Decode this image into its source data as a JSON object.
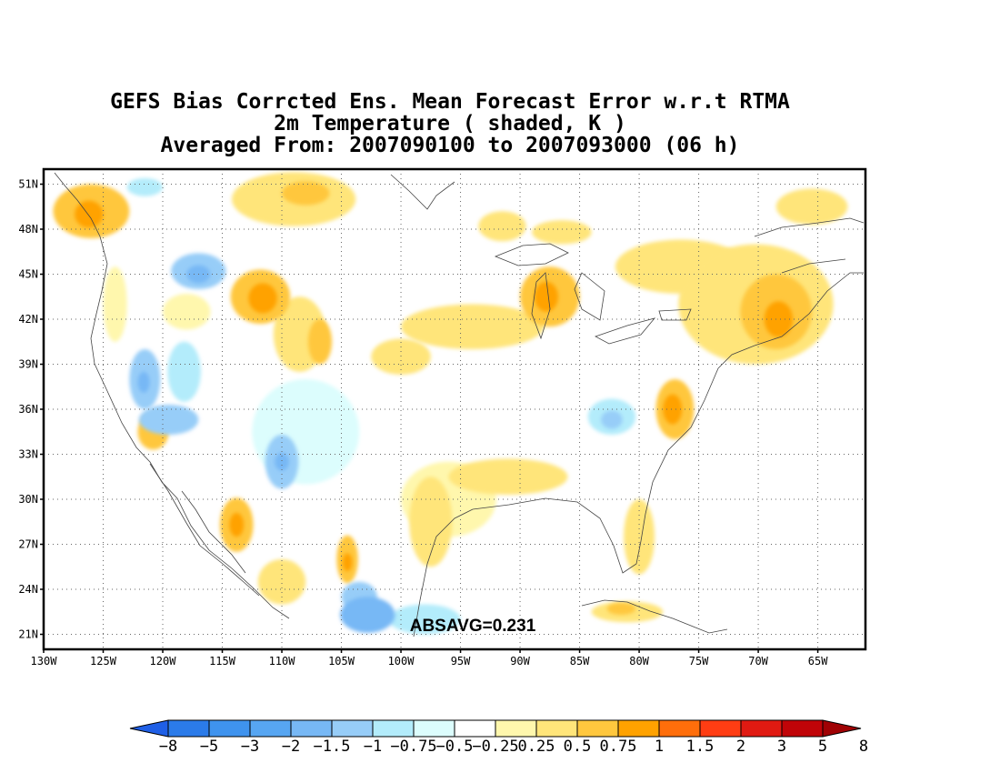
{
  "title": {
    "line1": "GEFS Bias Corrcted Ens. Mean Forecast Error w.r.t RTMA",
    "line2": "2m Temperature ( shaded, K )",
    "line3": "Averaged From: 2007090100 to 2007093000 (06 h)"
  },
  "map": {
    "lon_range": [
      -130,
      -61
    ],
    "lat_range": [
      20,
      52
    ],
    "grid": "dotted",
    "lat_ticks": [
      {
        "value": 51,
        "label": "51N"
      },
      {
        "value": 48,
        "label": "48N"
      },
      {
        "value": 45,
        "label": "45N"
      },
      {
        "value": 42,
        "label": "42N"
      },
      {
        "value": 39,
        "label": "39N"
      },
      {
        "value": 36,
        "label": "36N"
      },
      {
        "value": 33,
        "label": "33N"
      },
      {
        "value": 30,
        "label": "30N"
      },
      {
        "value": 27,
        "label": "27N"
      },
      {
        "value": 24,
        "label": "24N"
      },
      {
        "value": 21,
        "label": "21N"
      }
    ],
    "lon_ticks": [
      {
        "value": -130,
        "label": "130W"
      },
      {
        "value": -125,
        "label": "125W"
      },
      {
        "value": -120,
        "label": "120W"
      },
      {
        "value": -115,
        "label": "115W"
      },
      {
        "value": -110,
        "label": "110W"
      },
      {
        "value": -105,
        "label": "105W"
      },
      {
        "value": -100,
        "label": "100W"
      },
      {
        "value": -95,
        "label": "95W"
      },
      {
        "value": -90,
        "label": "90W"
      },
      {
        "value": -85,
        "label": "85W"
      },
      {
        "value": -80,
        "label": "80W"
      },
      {
        "value": -75,
        "label": "75W"
      },
      {
        "value": -70,
        "label": "70W"
      },
      {
        "value": -65,
        "label": "65W"
      }
    ],
    "absavg_label": "ABSAVG=0.231"
  },
  "colorbar": {
    "colors": [
      "#1f5fe6",
      "#2b7be9",
      "#3f93ee",
      "#57a6f2",
      "#77b8f5",
      "#97cdf8",
      "#b3ecfb",
      "#dcfdfd",
      "#ffffff",
      "#fff7ad",
      "#ffe57a",
      "#ffc73e",
      "#ffa200",
      "#ff6e0b",
      "#ff3d13",
      "#e01a12",
      "#c00408",
      "#a00204"
    ],
    "labels": [
      "-8",
      "-5",
      "-3",
      "-2",
      "-1.5",
      "-1",
      "-0.75",
      "-0.5",
      "-0.25",
      "0.25",
      "0.5",
      "0.75",
      "1",
      "1.5",
      "2",
      "3",
      "5",
      "8"
    ]
  },
  "blobs": [
    {
      "lon": -126,
      "lat": 49.2,
      "rx": 3.2,
      "ry": 1.8,
      "v": 0.75
    },
    {
      "lon": -126.2,
      "lat": 49.0,
      "rx": 1.2,
      "ry": 0.9,
      "v": 1
    },
    {
      "lon": -121.5,
      "lat": 50.8,
      "rx": 1.5,
      "ry": 0.6,
      "v": -0.5
    },
    {
      "lon": -117,
      "lat": 45.2,
      "rx": 2.3,
      "ry": 1.2,
      "v": -1
    },
    {
      "lon": -117,
      "lat": 45.0,
      "rx": 1.0,
      "ry": 0.6,
      "v": -1.5
    },
    {
      "lon": -111.8,
      "lat": 43.5,
      "rx": 2.5,
      "ry": 1.8,
      "v": 0.75
    },
    {
      "lon": -111.6,
      "lat": 43.4,
      "rx": 1.2,
      "ry": 1.0,
      "v": 1
    },
    {
      "lon": -108.5,
      "lat": 41.0,
      "rx": 2.2,
      "ry": 2.5,
      "v": 0.5
    },
    {
      "lon": -106.8,
      "lat": 40.5,
      "rx": 1.0,
      "ry": 1.5,
      "v": 0.75
    },
    {
      "lon": -109,
      "lat": 50,
      "rx": 5.2,
      "ry": 1.8,
      "v": 0.5
    },
    {
      "lon": -108,
      "lat": 50.4,
      "rx": 2.0,
      "ry": 0.8,
      "v": 0.75
    },
    {
      "lon": -121.5,
      "lat": 38,
      "rx": 1.3,
      "ry": 2.0,
      "v": -1
    },
    {
      "lon": -121.6,
      "lat": 37.8,
      "rx": 0.5,
      "ry": 0.7,
      "v": -1.5
    },
    {
      "lon": -119.5,
      "lat": 35.3,
      "rx": 2.5,
      "ry": 1.0,
      "v": -1
    },
    {
      "lon": -120.8,
      "lat": 34.5,
      "rx": 1.3,
      "ry": 1.2,
      "v": 0.75
    },
    {
      "lon": -118.2,
      "lat": 38.5,
      "rx": 1.4,
      "ry": 2.0,
      "v": -0.75
    },
    {
      "lon": -110,
      "lat": 32.5,
      "rx": 1.4,
      "ry": 1.8,
      "v": -1
    },
    {
      "lon": -110,
      "lat": 32.5,
      "rx": 0.6,
      "ry": 0.6,
      "v": -1.5
    },
    {
      "lon": -113.8,
      "lat": 28.3,
      "rx": 1.4,
      "ry": 1.8,
      "v": 0.75
    },
    {
      "lon": -113.8,
      "lat": 28.3,
      "rx": 0.6,
      "ry": 0.8,
      "v": 1
    },
    {
      "lon": -104.5,
      "lat": 26.0,
      "rx": 0.9,
      "ry": 1.6,
      "v": 0.75
    },
    {
      "lon": -104.5,
      "lat": 25.8,
      "rx": 0.4,
      "ry": 0.6,
      "v": 1
    },
    {
      "lon": -102.8,
      "lat": 22.3,
      "rx": 2.3,
      "ry": 1.2,
      "v": -1.5
    },
    {
      "lon": -103.5,
      "lat": 23.5,
      "rx": 1.5,
      "ry": 1.0,
      "v": -1
    },
    {
      "lon": -98,
      "lat": 22,
      "rx": 3.0,
      "ry": 1.0,
      "v": -0.5
    },
    {
      "lon": -100,
      "lat": 39.5,
      "rx": 2.5,
      "ry": 1.2,
      "v": 0.5
    },
    {
      "lon": -94,
      "lat": 41.5,
      "rx": 6.0,
      "ry": 1.5,
      "v": 0.5
    },
    {
      "lon": -87.5,
      "lat": 43.5,
      "rx": 2.5,
      "ry": 2.0,
      "v": 0.75
    },
    {
      "lon": -87.8,
      "lat": 43.5,
      "rx": 1.0,
      "ry": 1.0,
      "v": 1
    },
    {
      "lon": -91.5,
      "lat": 48.2,
      "rx": 2.0,
      "ry": 1.0,
      "v": 0.5
    },
    {
      "lon": -86.5,
      "lat": 47.8,
      "rx": 2.5,
      "ry": 0.8,
      "v": 0.5
    },
    {
      "lon": -76.5,
      "lat": 45.5,
      "rx": 5.5,
      "ry": 1.8,
      "v": 0.5
    },
    {
      "lon": -70.2,
      "lat": 43.0,
      "rx": 6.5,
      "ry": 4.0,
      "v": 0.5
    },
    {
      "lon": -68.5,
      "lat": 42.5,
      "rx": 3.0,
      "ry": 2.5,
      "v": 0.75
    },
    {
      "lon": -68.3,
      "lat": 42.0,
      "rx": 1.2,
      "ry": 1.2,
      "v": 1
    },
    {
      "lon": -65.5,
      "lat": 49.5,
      "rx": 3.0,
      "ry": 1.2,
      "v": 0.5
    },
    {
      "lon": -77,
      "lat": 36.0,
      "rx": 1.6,
      "ry": 2.0,
      "v": 0.75
    },
    {
      "lon": -77.2,
      "lat": 36.0,
      "rx": 0.8,
      "ry": 1.0,
      "v": 1
    },
    {
      "lon": -82.3,
      "lat": 35.5,
      "rx": 2.0,
      "ry": 1.2,
      "v": -0.5
    },
    {
      "lon": -82.3,
      "lat": 35.3,
      "rx": 0.9,
      "ry": 0.6,
      "v": -1
    },
    {
      "lon": -81,
      "lat": 22.5,
      "rx": 3.0,
      "ry": 0.7,
      "v": 0.5
    },
    {
      "lon": -81.5,
      "lat": 22.7,
      "rx": 1.2,
      "ry": 0.4,
      "v": 0.75
    },
    {
      "lon": -80,
      "lat": 27.5,
      "rx": 1.3,
      "ry": 2.5,
      "v": 0.5
    },
    {
      "lon": -91,
      "lat": 31.5,
      "rx": 5.0,
      "ry": 1.2,
      "v": 0.5
    },
    {
      "lon": -97.5,
      "lat": 28.5,
      "rx": 1.8,
      "ry": 3.0,
      "v": 0.5
    },
    {
      "lon": -108,
      "lat": 34.5,
      "rx": 4.5,
      "ry": 3.5,
      "v": -0.25
    },
    {
      "lon": -124,
      "lat": 43,
      "rx": 1.0,
      "ry": 2.5,
      "v": 0.25
    },
    {
      "lon": -118,
      "lat": 42.5,
      "rx": 2.0,
      "ry": 1.2,
      "v": 0.25
    },
    {
      "lon": -96,
      "lat": 30,
      "rx": 4.0,
      "ry": 2.5,
      "v": 0.25
    },
    {
      "lon": -110,
      "lat": 24.5,
      "rx": 2.0,
      "ry": 1.5,
      "v": 0.5
    }
  ]
}
